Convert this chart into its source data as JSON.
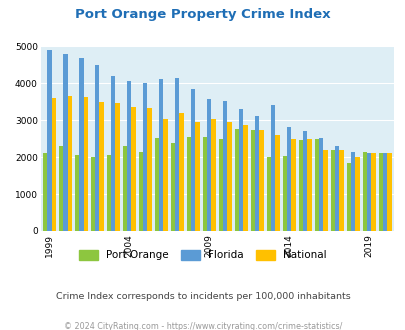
{
  "title": "Port Orange Property Crime Index",
  "years": [
    1999,
    2000,
    2001,
    2002,
    2003,
    2004,
    2005,
    2006,
    2007,
    2008,
    2009,
    2010,
    2011,
    2012,
    2013,
    2014,
    2015,
    2016,
    2017,
    2018,
    2019,
    2020
  ],
  "port_orange": [
    2100,
    2300,
    2050,
    2000,
    2050,
    2300,
    2150,
    2520,
    2380,
    2550,
    2550,
    2500,
    2750,
    2720,
    2000,
    2020,
    2450,
    2500,
    2200,
    1850,
    2150,
    2100
  ],
  "florida": [
    4900,
    4800,
    4680,
    4500,
    4200,
    4050,
    4000,
    4100,
    4150,
    3850,
    3580,
    3520,
    3300,
    3110,
    3420,
    2820,
    2700,
    2520,
    2300,
    2150,
    2100,
    2100
  ],
  "national": [
    3610,
    3650,
    3620,
    3500,
    3470,
    3350,
    3320,
    3040,
    3200,
    2960,
    3020,
    2940,
    2880,
    2730,
    2590,
    2500,
    2490,
    2200,
    2180,
    2000,
    2110,
    2100
  ],
  "color_port_orange": "#8dc63f",
  "color_florida": "#5b9bd5",
  "color_national": "#ffc000",
  "bg_color": "#deeef5",
  "ylim": [
    0,
    5000
  ],
  "yticks": [
    0,
    1000,
    2000,
    3000,
    4000,
    5000
  ],
  "xtick_years": [
    1999,
    2004,
    2009,
    2014,
    2019
  ],
  "legend_labels": [
    "Port Orange",
    "Florida",
    "National"
  ],
  "subtitle": "Crime Index corresponds to incidents per 100,000 inhabitants",
  "footer": "© 2024 CityRating.com - https://www.cityrating.com/crime-statistics/",
  "title_color": "#1f6eb5",
  "subtitle_color": "#444444",
  "footer_color": "#999999"
}
